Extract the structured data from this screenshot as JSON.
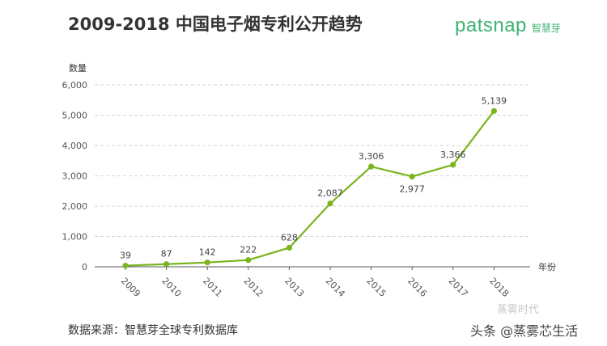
{
  "header": {
    "title": "2009-2018 中国电子烟专利公开趋势",
    "brand_name": "patsnap",
    "brand_sub": "智慧芽"
  },
  "footer": {
    "source": "数据来源：智慧芽全球专利数据库",
    "watermark_top": "蒸雾时代",
    "watermark_bottom": "头条 @蒸雾芯生活"
  },
  "colors": {
    "line": "#7ab51d",
    "grid": "#d6d6d6",
    "axis": "#555555"
  },
  "chart_data": {
    "type": "line",
    "ylabel": "数量",
    "xlabel": "年份",
    "ylim": [
      0,
      6000
    ],
    "yticks": [
      "6,000",
      "5,000",
      "4,000",
      "3,000",
      "2,000",
      "1,000",
      "0"
    ],
    "ytick_values": [
      6000,
      5000,
      4000,
      3000,
      2000,
      1000,
      0
    ],
    "categories": [
      "2009",
      "2010",
      "2011",
      "2012",
      "2013",
      "2014",
      "2015",
      "2016",
      "2017",
      "2018"
    ],
    "values": [
      39,
      87,
      142,
      222,
      628,
      2087,
      3306,
      2977,
      3366,
      5139
    ],
    "data_labels": [
      "39",
      "87",
      "142",
      "222",
      "628",
      "2,087",
      "3,306",
      "2,977",
      "3,366",
      "5,139"
    ],
    "grid": "horizontal dashed",
    "legend": "none"
  }
}
